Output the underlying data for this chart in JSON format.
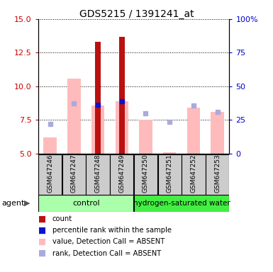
{
  "title": "GDS5215 / 1391241_at",
  "samples": [
    "GSM647246",
    "GSM647247",
    "GSM647248",
    "GSM647249",
    "GSM647250",
    "GSM647251",
    "GSM647252",
    "GSM647253"
  ],
  "red_bars": [
    null,
    null,
    13.3,
    13.7,
    null,
    null,
    null,
    null
  ],
  "pink_bars": [
    6.2,
    10.6,
    8.6,
    8.9,
    7.5,
    5.1,
    8.4,
    8.1
  ],
  "blue_squares": [
    null,
    null,
    8.65,
    8.9,
    null,
    null,
    null,
    null
  ],
  "light_blue_squares": [
    7.2,
    8.75,
    null,
    null,
    8.0,
    7.35,
    8.55,
    8.1
  ],
  "ylim_left": [
    5,
    15
  ],
  "ylim_right": [
    0,
    100
  ],
  "yticks_left": [
    5.0,
    7.5,
    10.0,
    12.5,
    15.0
  ],
  "yticks_right_vals": [
    0,
    25,
    50,
    75,
    100
  ],
  "yticks_right_labels": [
    "0",
    "25",
    "50",
    "75",
    "100%"
  ],
  "red_color": "#bb1111",
  "pink_color": "#ffbbbb",
  "blue_color": "#1111cc",
  "light_blue_color": "#aaaadd",
  "ylabel_left_color": "#cc0000",
  "ylabel_right_color": "#0000cc",
  "gray_box_color": "#cccccc",
  "control_green": "#aaffaa",
  "h2_green": "#44ee44",
  "legend_items": [
    {
      "color": "#bb1111",
      "label": "count"
    },
    {
      "color": "#1111cc",
      "label": "percentile rank within the sample"
    },
    {
      "color": "#ffbbbb",
      "label": "value, Detection Call = ABSENT"
    },
    {
      "color": "#aaaadd",
      "label": "rank, Detection Call = ABSENT"
    }
  ]
}
